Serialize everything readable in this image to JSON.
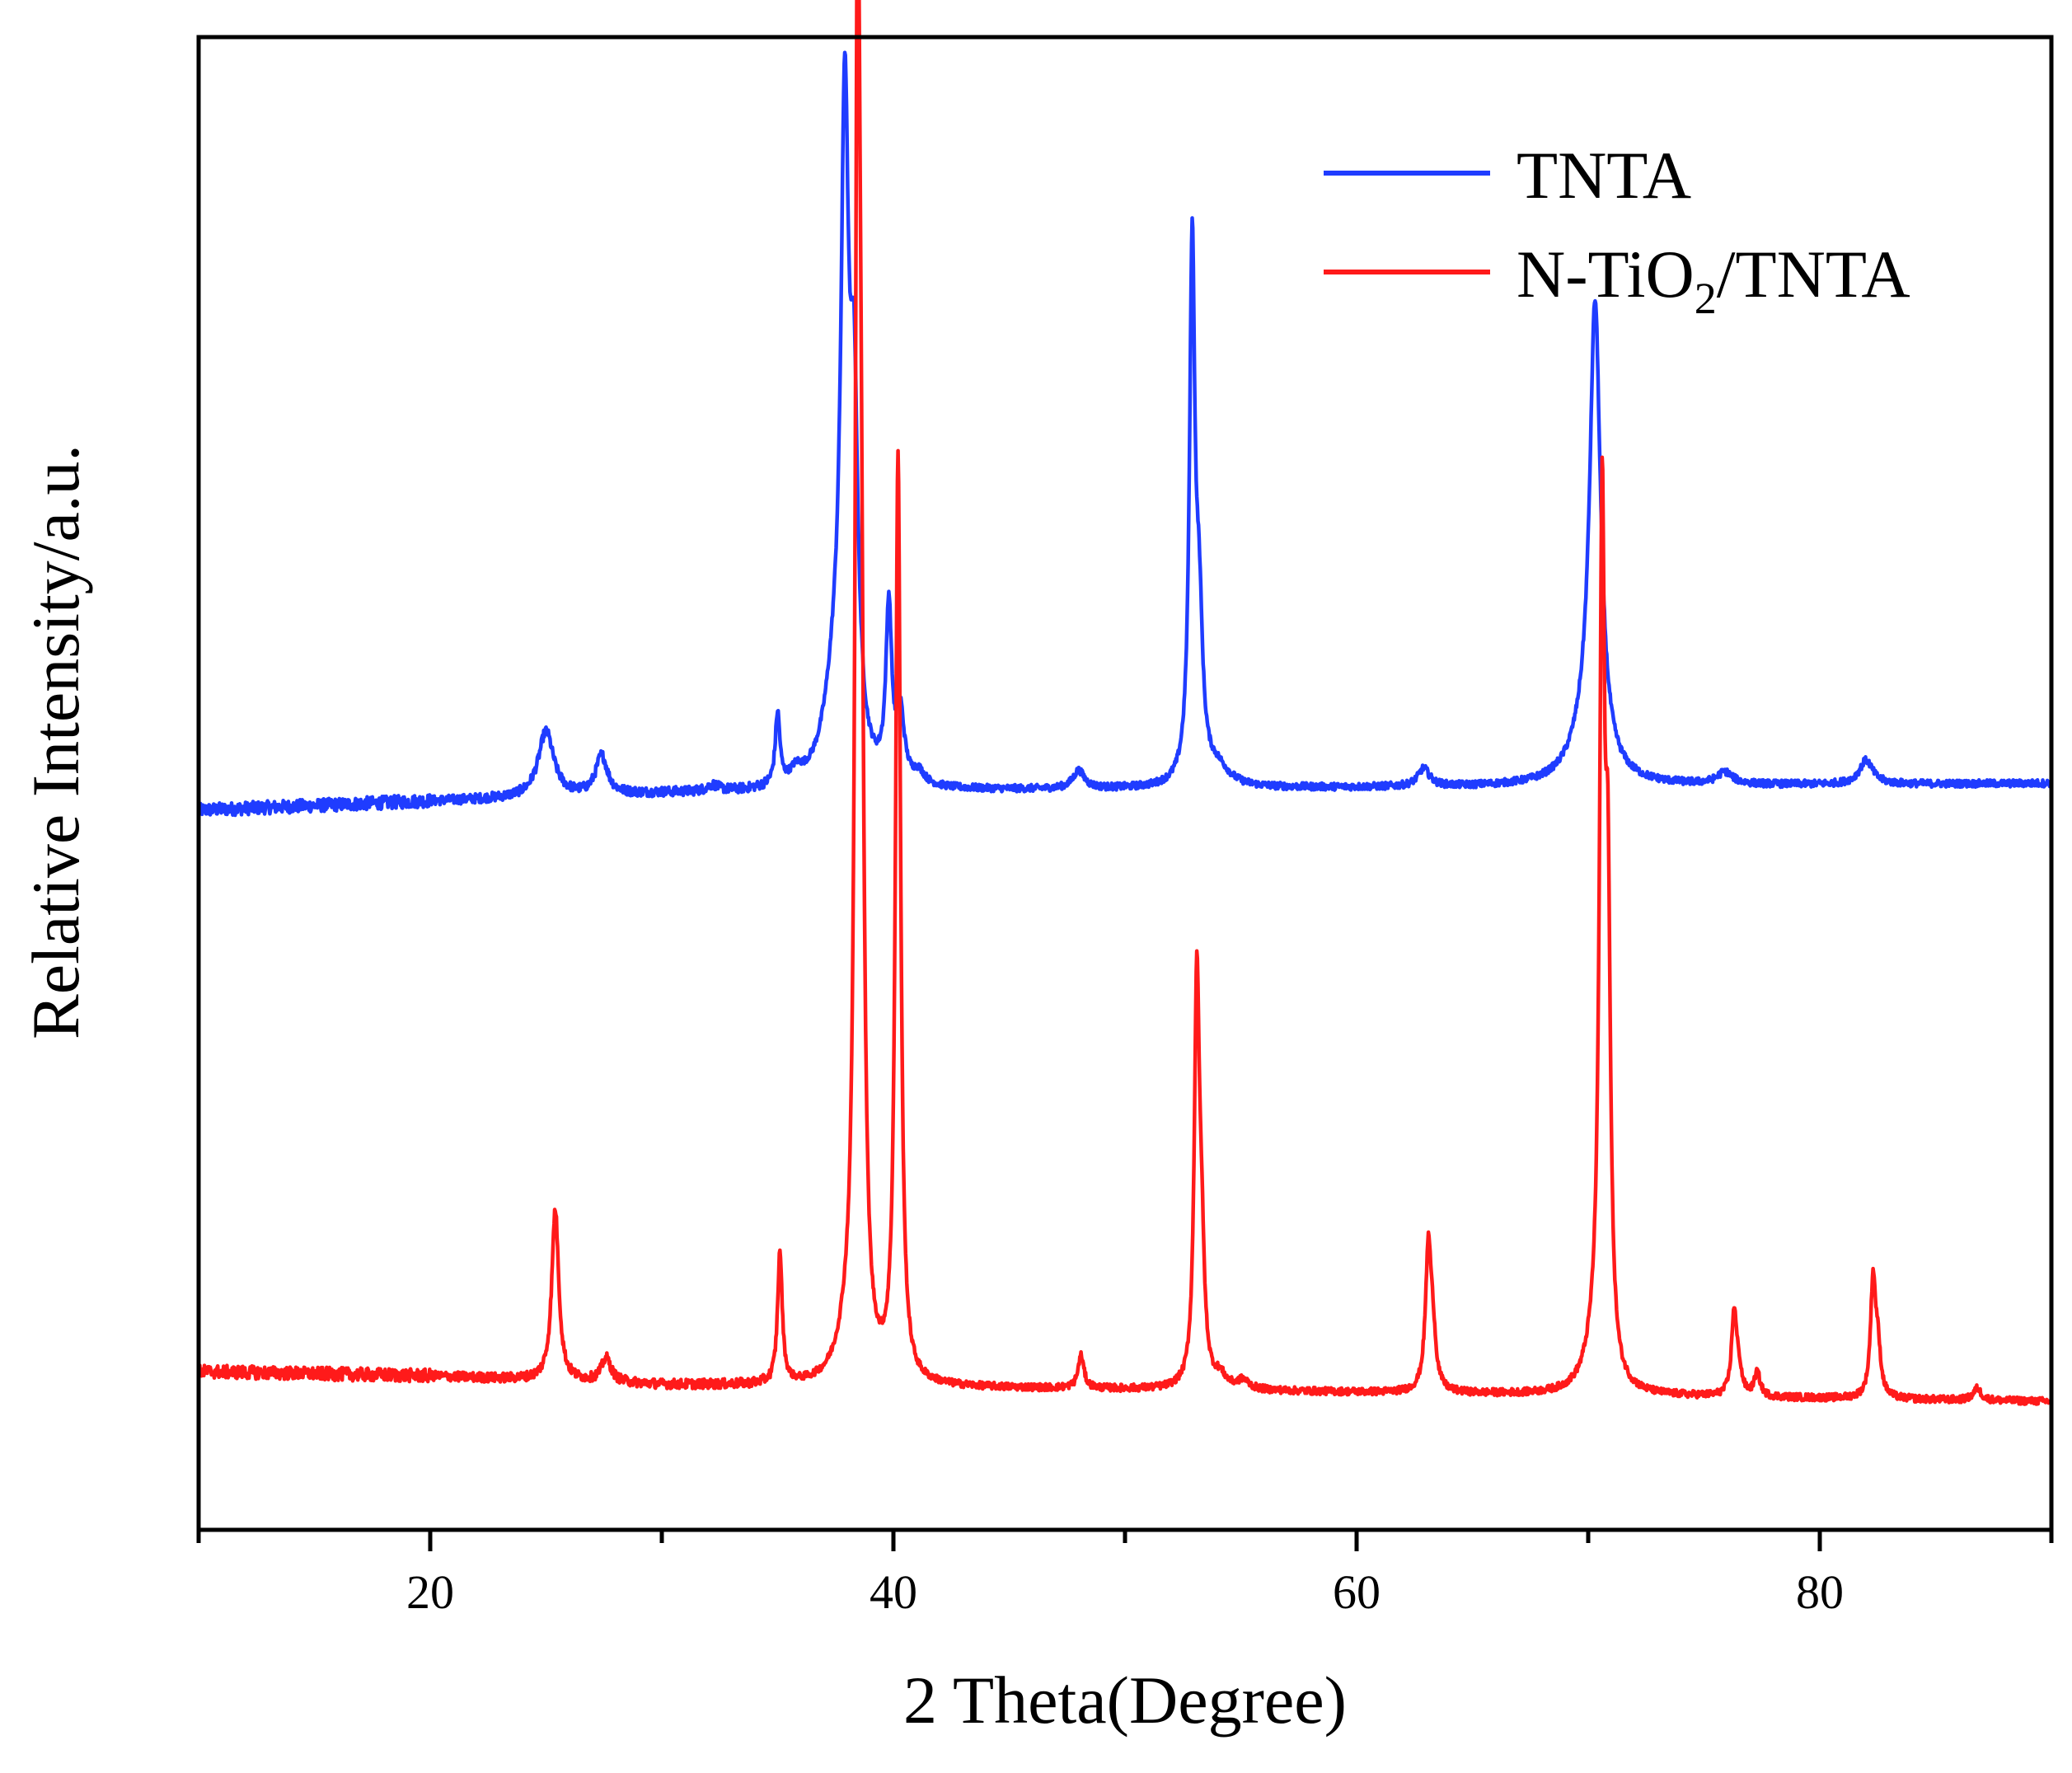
{
  "chart_data": {
    "type": "line",
    "title": "",
    "xlabel": "2 Theta(Degree)",
    "ylabel": "Relative Intensity/a.u.",
    "xlim": [
      10,
      90
    ],
    "ylim": [
      0,
      100
    ],
    "x_ticks": [
      20,
      40,
      60,
      80
    ],
    "grid": false,
    "legend_position": "top-right",
    "series": [
      {
        "name": "TNTA",
        "color": "#1f3cff",
        "baseline": [
          [
            10,
            48.2
          ],
          [
            20,
            48.8
          ],
          [
            30,
            49.3
          ],
          [
            50,
            49.6
          ],
          [
            70,
            49.8
          ],
          [
            90,
            50.0
          ]
        ],
        "peaks": [
          {
            "x": 25.0,
            "h": 4.4,
            "w": 0.4
          },
          {
            "x": 27.4,
            "h": 2.6,
            "w": 0.3
          },
          {
            "x": 32.2,
            "h": 0.4,
            "w": 0.3
          },
          {
            "x": 35.0,
            "h": 4.8,
            "w": 0.12
          },
          {
            "x": 35.8,
            "h": 0.8,
            "w": 0.3
          },
          {
            "x": 37.9,
            "h": 41.0,
            "w": 0.2
          },
          {
            "x": 38.3,
            "h": 22.0,
            "w": 0.2
          },
          {
            "x": 37.5,
            "h": 6.0,
            "w": 0.6
          },
          {
            "x": 39.8,
            "h": 11.5,
            "w": 0.15
          },
          {
            "x": 40.3,
            "h": 4.5,
            "w": 0.2
          },
          {
            "x": 41.1,
            "h": 0.8,
            "w": 0.3
          },
          {
            "x": 48.0,
            "h": 1.2,
            "w": 0.3
          },
          {
            "x": 52.9,
            "h": 35.2,
            "w": 0.14
          },
          {
            "x": 53.2,
            "h": 10.0,
            "w": 0.18
          },
          {
            "x": 54.0,
            "h": 1.2,
            "w": 0.6
          },
          {
            "x": 62.9,
            "h": 1.2,
            "w": 0.3
          },
          {
            "x": 70.3,
            "h": 30.0,
            "w": 0.28
          },
          {
            "x": 70.0,
            "h": 3.0,
            "w": 0.8
          },
          {
            "x": 75.9,
            "h": 0.8,
            "w": 0.4
          },
          {
            "x": 82.0,
            "h": 1.6,
            "w": 0.35
          }
        ]
      },
      {
        "name": "N-TiO2/TNTA",
        "color": "#ff1a1a",
        "baseline": [
          [
            10,
            10.6
          ],
          [
            20,
            10.3
          ],
          [
            30,
            9.7
          ],
          [
            50,
            9.4
          ],
          [
            70,
            9.0
          ],
          [
            90,
            8.6
          ]
        ],
        "peaks": [
          {
            "x": 25.4,
            "h": 11.5,
            "w": 0.18
          },
          {
            "x": 27.6,
            "h": 1.6,
            "w": 0.25
          },
          {
            "x": 35.1,
            "h": 8.8,
            "w": 0.12
          },
          {
            "x": 38.0,
            "h": 2.5,
            "w": 0.5
          },
          {
            "x": 38.45,
            "h": 80.0,
            "w": 0.12
          },
          {
            "x": 38.6,
            "h": 40.0,
            "w": 0.15
          },
          {
            "x": 40.2,
            "h": 62.0,
            "w": 0.13
          },
          {
            "x": 48.1,
            "h": 2.2,
            "w": 0.15
          },
          {
            "x": 53.1,
            "h": 26.5,
            "w": 0.13
          },
          {
            "x": 53.3,
            "h": 8.0,
            "w": 0.15
          },
          {
            "x": 54.1,
            "h": 0.8,
            "w": 0.3
          },
          {
            "x": 55.1,
            "h": 0.6,
            "w": 0.3
          },
          {
            "x": 63.1,
            "h": 9.5,
            "w": 0.15
          },
          {
            "x": 63.3,
            "h": 3.0,
            "w": 0.15
          },
          {
            "x": 70.6,
            "h": 55.0,
            "w": 0.13
          },
          {
            "x": 70.85,
            "h": 28.0,
            "w": 0.13
          },
          {
            "x": 70.3,
            "h": 2.5,
            "w": 0.5
          },
          {
            "x": 76.3,
            "h": 5.5,
            "w": 0.13
          },
          {
            "x": 76.5,
            "h": 1.5,
            "w": 0.15
          },
          {
            "x": 77.3,
            "h": 1.6,
            "w": 0.15
          },
          {
            "x": 82.3,
            "h": 7.6,
            "w": 0.13
          },
          {
            "x": 82.5,
            "h": 3.0,
            "w": 0.15
          },
          {
            "x": 86.8,
            "h": 0.8,
            "w": 0.2
          }
        ]
      }
    ]
  },
  "legend": {
    "items": [
      {
        "label": "TNTA",
        "color": "#1f3cff"
      },
      {
        "label_main": "N-TiO",
        "label_sub": "2",
        "label_tail": "/TNTA",
        "color": "#ff1a1a"
      }
    ]
  }
}
